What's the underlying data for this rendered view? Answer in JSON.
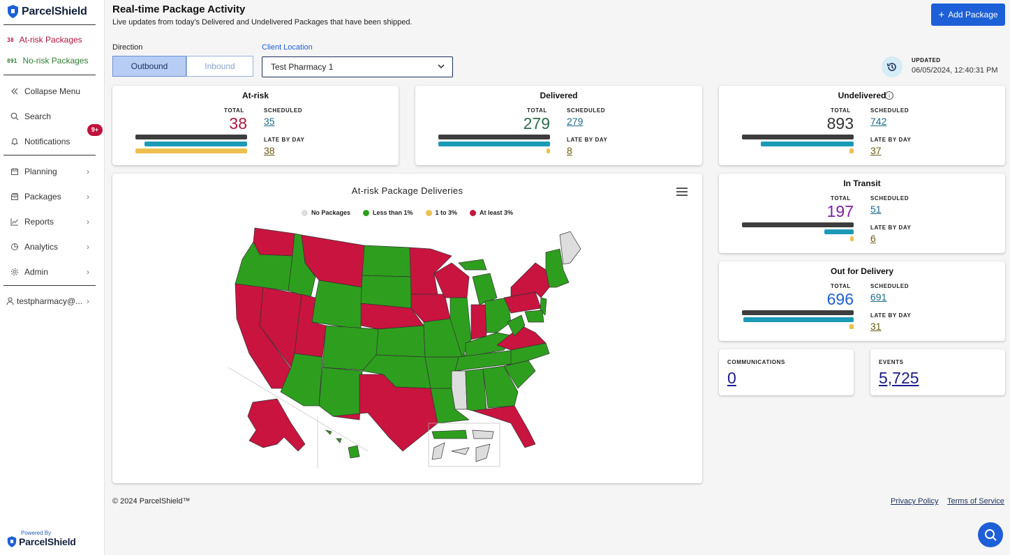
{
  "app": {
    "brand": "ParcelShield",
    "powered_by": "Powered By",
    "powered_brand": "ParcelShield"
  },
  "sidebar": {
    "risk_items": [
      {
        "count": "38",
        "label": "At-risk Packages",
        "color": "#b0163c"
      },
      {
        "count": "891",
        "label": "No-risk Packages",
        "color": "#2e7d32"
      }
    ],
    "collapse": "Collapse Menu",
    "search": "Search",
    "notifications": "Notifications",
    "notifications_badge": "9+",
    "items": [
      {
        "label": "Planning",
        "icon": "calendar-icon"
      },
      {
        "label": "Packages",
        "icon": "package-icon"
      },
      {
        "label": "Reports",
        "icon": "chart-line-icon"
      },
      {
        "label": "Analytics",
        "icon": "analytics-icon"
      },
      {
        "label": "Admin",
        "icon": "gear-icon"
      }
    ],
    "user": "testpharmacy@..."
  },
  "header": {
    "title": "Real-time Package Activity",
    "subtitle": "Live updates from today's Delivered and Undelivered Packages that have been shipped.",
    "add_button": "Add Package",
    "direction_label": "Direction",
    "direction_options": [
      "Outbound",
      "Inbound"
    ],
    "direction_selected": "Outbound",
    "location_label": "Client Location",
    "location_value": "Test Pharmacy 1",
    "updated_label": "UPDATED",
    "updated_time": "06/05/2024, 12:40:31 PM"
  },
  "labels": {
    "total": "TOTAL",
    "scheduled": "SCHEDULED",
    "late": "LATE BY DAY"
  },
  "cards": {
    "at_risk": {
      "title": "At-risk",
      "total": "38",
      "scheduled": "35",
      "late": "38",
      "total_color": "#b0163c",
      "bars": [
        1.0,
        0.92,
        1.0
      ]
    },
    "delivered": {
      "title": "Delivered",
      "total": "279",
      "scheduled": "279",
      "late": "8",
      "total_color": "#2e6b4a",
      "bars": [
        1.0,
        1.0,
        0.03
      ]
    },
    "undelivered": {
      "title": "Undelivered",
      "total": "893",
      "scheduled": "742",
      "late": "37",
      "total_color": "#333333",
      "bars": [
        1.0,
        0.83,
        0.04
      ]
    },
    "in_transit": {
      "title": "In Transit",
      "total": "197",
      "scheduled": "51",
      "late": "6",
      "total_color": "#7b1fa2",
      "bars": [
        1.0,
        0.26,
        0.03
      ]
    },
    "out_for_delivery": {
      "title": "Out for Delivery",
      "total": "696",
      "scheduled": "691",
      "late": "31",
      "total_color": "#1d5fd6",
      "bars": [
        1.0,
        0.99,
        0.04
      ]
    }
  },
  "small_cards": {
    "communications": {
      "label": "COMMUNICATIONS",
      "value": "0"
    },
    "events": {
      "label": "EVENTS",
      "value": "5,725"
    }
  },
  "map": {
    "title": "At-risk Package Deliveries",
    "legend": [
      {
        "label": "No Packages",
        "color": "#dddddd"
      },
      {
        "label": "Less than 1%",
        "color": "#2e9e1e"
      },
      {
        "label": "1 to 3%",
        "color": "#edc04e"
      },
      {
        "label": "At least 3%",
        "color": "#c8143f"
      }
    ]
  },
  "footer": {
    "copyright": "© 2024 ParcelShield™",
    "privacy": "Privacy Policy",
    "terms": "Terms of Service"
  }
}
